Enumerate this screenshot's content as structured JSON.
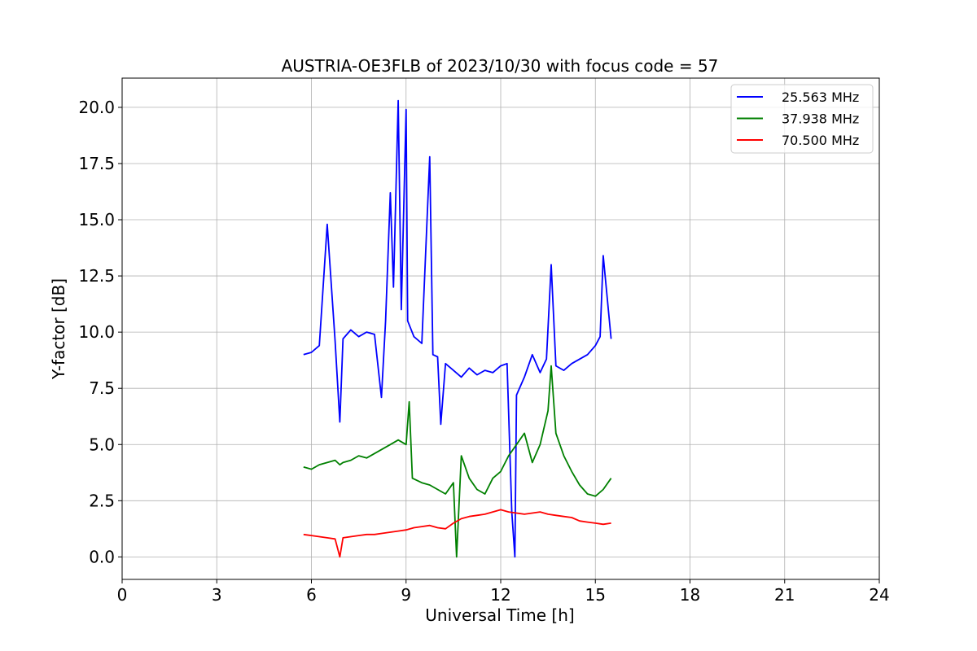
{
  "chart_data": {
    "type": "line",
    "title": "AUSTRIA-OE3FLB of 2023/10/30 with focus code = 57",
    "xlabel": "Universal Time [h]",
    "ylabel": "Y-factor [dB]",
    "xlim": [
      0,
      24
    ],
    "ylim": [
      -1.0,
      21.3
    ],
    "xticks": [
      0,
      3,
      6,
      9,
      12,
      15,
      18,
      21,
      24
    ],
    "yticks": [
      0.0,
      2.5,
      5.0,
      7.5,
      10.0,
      12.5,
      15.0,
      17.5,
      20.0
    ],
    "xtick_labels": [
      "0",
      "3",
      "6",
      "9",
      "12",
      "15",
      "18",
      "21",
      "24"
    ],
    "ytick_labels": [
      "0.0",
      "2.5",
      "5.0",
      "7.5",
      "10.0",
      "12.5",
      "15.0",
      "17.5",
      "20.0"
    ],
    "grid": true,
    "legend_position": "top-right",
    "series": [
      {
        "name": "25.563 MHz",
        "color": "#0000ff",
        "x": [
          5.75,
          6.0,
          6.25,
          6.5,
          6.75,
          6.9,
          7.0,
          7.25,
          7.5,
          7.75,
          8.0,
          8.22,
          8.35,
          8.5,
          8.6,
          8.75,
          8.85,
          9.0,
          9.05,
          9.25,
          9.5,
          9.75,
          9.85,
          10.0,
          10.1,
          10.25,
          10.5,
          10.75,
          11.0,
          11.25,
          11.5,
          11.75,
          12.0,
          12.2,
          12.35,
          12.45,
          12.5,
          12.75,
          13.0,
          13.25,
          13.45,
          13.6,
          13.75,
          14.0,
          14.25,
          14.5,
          14.75,
          15.0,
          15.15,
          15.25,
          15.5
        ],
        "y": [
          9.0,
          9.1,
          9.4,
          14.8,
          9.6,
          6.0,
          9.7,
          10.1,
          9.8,
          10.0,
          9.9,
          7.1,
          10.5,
          16.2,
          12.0,
          20.3,
          11.0,
          19.9,
          10.5,
          9.8,
          9.5,
          17.8,
          9.0,
          8.9,
          5.9,
          8.6,
          8.3,
          8.0,
          8.4,
          8.1,
          8.3,
          8.2,
          8.5,
          8.6,
          2.0,
          0.0,
          7.2,
          8.0,
          9.0,
          8.2,
          8.8,
          13.0,
          8.5,
          8.3,
          8.6,
          8.8,
          9.0,
          9.4,
          9.8,
          13.4,
          9.7
        ]
      },
      {
        "name": "37.938 MHz",
        "color": "#008000",
        "x": [
          5.75,
          6.0,
          6.25,
          6.5,
          6.75,
          6.9,
          7.0,
          7.25,
          7.5,
          7.75,
          8.0,
          8.25,
          8.5,
          8.75,
          9.0,
          9.1,
          9.2,
          9.5,
          9.75,
          10.0,
          10.25,
          10.5,
          10.6,
          10.75,
          11.0,
          11.25,
          11.5,
          11.75,
          12.0,
          12.25,
          12.5,
          12.75,
          13.0,
          13.25,
          13.5,
          13.6,
          13.75,
          14.0,
          14.25,
          14.5,
          14.75,
          15.0,
          15.25,
          15.5
        ],
        "y": [
          4.0,
          3.9,
          4.1,
          4.2,
          4.3,
          4.1,
          4.2,
          4.3,
          4.5,
          4.4,
          4.6,
          4.8,
          5.0,
          5.2,
          5.0,
          6.9,
          3.5,
          3.3,
          3.2,
          3.0,
          2.8,
          3.3,
          0.0,
          4.5,
          3.5,
          3.0,
          2.8,
          3.5,
          3.8,
          4.5,
          5.0,
          5.5,
          4.2,
          5.0,
          6.5,
          8.5,
          5.5,
          4.5,
          3.8,
          3.2,
          2.8,
          2.7,
          3.0,
          3.5
        ]
      },
      {
        "name": "70.500 MHz",
        "color": "#ff0000",
        "x": [
          5.75,
          6.0,
          6.25,
          6.5,
          6.75,
          6.9,
          7.0,
          7.25,
          7.5,
          7.75,
          8.0,
          8.25,
          8.5,
          8.75,
          9.0,
          9.25,
          9.5,
          9.75,
          10.0,
          10.25,
          10.5,
          10.75,
          11.0,
          11.25,
          11.5,
          11.75,
          12.0,
          12.25,
          12.5,
          12.75,
          13.0,
          13.25,
          13.5,
          13.75,
          14.0,
          14.25,
          14.5,
          14.75,
          15.0,
          15.25,
          15.5
        ],
        "y": [
          1.0,
          0.95,
          0.9,
          0.85,
          0.8,
          0.0,
          0.85,
          0.9,
          0.95,
          1.0,
          1.0,
          1.05,
          1.1,
          1.15,
          1.2,
          1.3,
          1.35,
          1.4,
          1.3,
          1.25,
          1.5,
          1.7,
          1.8,
          1.85,
          1.9,
          2.0,
          2.1,
          2.0,
          1.95,
          1.9,
          1.95,
          2.0,
          1.9,
          1.85,
          1.8,
          1.75,
          1.6,
          1.55,
          1.5,
          1.45,
          1.5
        ]
      }
    ]
  }
}
